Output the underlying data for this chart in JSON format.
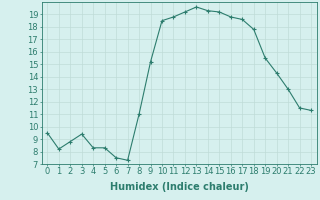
{
  "x": [
    0,
    1,
    2,
    3,
    4,
    5,
    6,
    7,
    8,
    9,
    10,
    11,
    12,
    13,
    14,
    15,
    16,
    17,
    18,
    19,
    20,
    21,
    22,
    23
  ],
  "y": [
    9.5,
    8.2,
    8.8,
    9.4,
    8.3,
    8.3,
    7.5,
    7.3,
    11.0,
    15.2,
    18.5,
    18.8,
    19.2,
    19.6,
    19.3,
    19.2,
    18.8,
    18.6,
    17.8,
    15.5,
    14.3,
    13.0,
    11.5,
    11.3
  ],
  "line_color": "#2d7d6e",
  "marker": "+",
  "marker_size": 3,
  "bg_color": "#d6f0ee",
  "grid_color": "#c0dcd8",
  "xlabel": "Humidex (Indice chaleur)",
  "ylim": [
    7,
    20
  ],
  "xlim": [
    -0.5,
    23.5
  ],
  "yticks": [
    7,
    8,
    9,
    10,
    11,
    12,
    13,
    14,
    15,
    16,
    17,
    18,
    19
  ],
  "xticks": [
    0,
    1,
    2,
    3,
    4,
    5,
    6,
    7,
    8,
    9,
    10,
    11,
    12,
    13,
    14,
    15,
    16,
    17,
    18,
    19,
    20,
    21,
    22,
    23
  ],
  "tick_color": "#2d7d6e",
  "axis_color": "#2d7d6e",
  "xlabel_fontsize": 7,
  "tick_fontsize": 6,
  "linewidth": 0.8,
  "markeredgewidth": 0.8
}
